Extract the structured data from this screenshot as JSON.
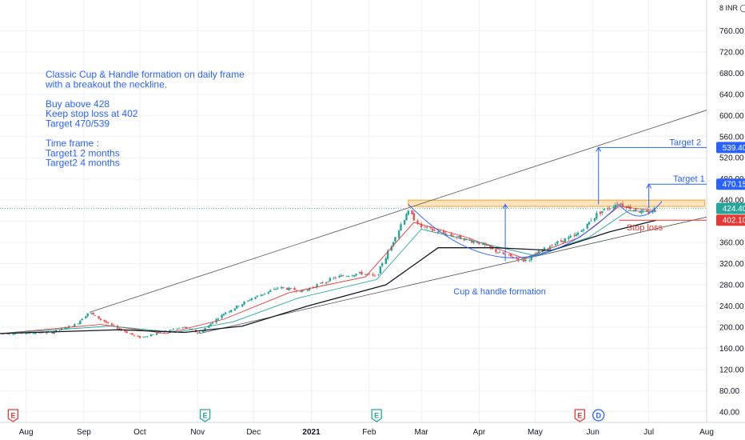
{
  "chart_data": {
    "type": "candlestick",
    "currency_label": "8 INR ◯",
    "y_ticks": [
      40,
      80,
      120,
      160,
      200,
      240,
      280,
      320,
      360,
      400,
      440,
      480,
      520,
      560,
      600,
      640,
      680,
      720,
      760
    ],
    "ylim": [
      20,
      800
    ],
    "x_ticks": [
      {
        "label": "Aug",
        "date": "2020-08-01"
      },
      {
        "label": "Sep",
        "date": "2020-09-01"
      },
      {
        "label": "Oct",
        "date": "2020-10-01"
      },
      {
        "label": "Nov",
        "date": "2020-11-01"
      },
      {
        "label": "Dec",
        "date": "2020-12-01"
      },
      {
        "label": "2021",
        "date": "2021-01-01",
        "bold": true
      },
      {
        "label": "Feb",
        "date": "2021-02-01"
      },
      {
        "label": "Mar",
        "date": "2021-03-01"
      },
      {
        "label": "Apr",
        "date": "2021-04-01"
      },
      {
        "label": "May",
        "date": "2021-05-01"
      },
      {
        "label": "Jun",
        "date": "2021-06-01"
      },
      {
        "label": "Jul",
        "date": "2021-07-01"
      },
      {
        "label": "Aug",
        "date": "2021-08-01"
      }
    ],
    "xlim": [
      "2020-07-18",
      "2021-08-01"
    ],
    "price_path": [
      [
        "2020-07-18",
        188
      ],
      [
        "2020-08-15",
        190
      ],
      [
        "2020-08-28",
        205
      ],
      [
        "2020-09-04",
        228
      ],
      [
        "2020-09-15",
        205
      ],
      [
        "2020-10-01",
        180
      ],
      [
        "2020-10-10",
        188
      ],
      [
        "2020-10-25",
        200
      ],
      [
        "2020-11-02",
        188
      ],
      [
        "2020-11-15",
        225
      ],
      [
        "2020-12-01",
        255
      ],
      [
        "2020-12-15",
        275
      ],
      [
        "2020-12-28",
        268
      ],
      [
        "2021-01-15",
        295
      ],
      [
        "2021-01-28",
        302
      ],
      [
        "2021-02-05",
        295
      ],
      [
        "2021-02-12",
        345
      ],
      [
        "2021-02-22",
        420
      ],
      [
        "2021-03-01",
        390
      ],
      [
        "2021-03-15",
        375
      ],
      [
        "2021-04-01",
        360
      ],
      [
        "2021-04-12",
        340
      ],
      [
        "2021-04-26",
        325
      ],
      [
        "2021-05-10",
        355
      ],
      [
        "2021-05-24",
        375
      ],
      [
        "2021-06-04",
        415
      ],
      [
        "2021-06-15",
        435
      ],
      [
        "2021-06-25",
        420
      ],
      [
        "2021-07-01",
        415
      ],
      [
        "2021-07-05",
        425
      ]
    ],
    "moving_averages": [
      {
        "color": "#e53935",
        "path": [
          [
            "2020-07-18",
            188
          ],
          [
            "2020-09-10",
            205
          ],
          [
            "2020-10-15",
            188
          ],
          [
            "2020-11-15",
            215
          ],
          [
            "2020-12-20",
            265
          ],
          [
            "2021-01-30",
            295
          ],
          [
            "2021-02-25",
            398
          ],
          [
            "2021-03-25",
            370
          ],
          [
            "2021-04-25",
            330
          ],
          [
            "2021-05-25",
            370
          ],
          [
            "2021-06-15",
            428
          ],
          [
            "2021-07-05",
            420
          ]
        ]
      },
      {
        "color": "#26a69a",
        "path": [
          [
            "2020-07-18",
            188
          ],
          [
            "2020-09-15",
            202
          ],
          [
            "2020-10-20",
            190
          ],
          [
            "2020-11-20",
            210
          ],
          [
            "2020-12-25",
            255
          ],
          [
            "2021-02-05",
            290
          ],
          [
            "2021-03-01",
            385
          ],
          [
            "2021-04-01",
            360
          ],
          [
            "2021-05-01",
            335
          ],
          [
            "2021-05-30",
            370
          ],
          [
            "2021-06-20",
            420
          ],
          [
            "2021-07-05",
            418
          ]
        ]
      },
      {
        "color": "#131722",
        "path": [
          [
            "2020-07-18",
            188
          ],
          [
            "2020-09-20",
            195
          ],
          [
            "2020-10-25",
            190
          ],
          [
            "2020-11-25",
            202
          ],
          [
            "2020-12-30",
            240
          ],
          [
            "2021-02-10",
            280
          ],
          [
            "2021-03-10",
            350
          ],
          [
            "2021-04-10",
            350
          ],
          [
            "2021-05-10",
            345
          ],
          [
            "2021-06-10",
            380
          ],
          [
            "2021-07-05",
            402
          ]
        ]
      }
    ],
    "channel_lines": [
      {
        "from": [
          "2020-09-04",
          228
        ],
        "to": [
          "2021-08-01",
          610
        ],
        "color": "#555555"
      },
      {
        "from": [
          "2020-11-02",
          188
        ],
        "to": [
          "2021-08-01",
          408
        ],
        "color": "#555555"
      }
    ],
    "resistance_zone": {
      "from": "2021-02-22",
      "to": "2021-07-31",
      "ymin": 428,
      "ymax": 440,
      "color": "#f5a623"
    },
    "price_labels": [
      {
        "value": "539.40",
        "price": 539.4,
        "bg": "#2962ff"
      },
      {
        "value": "470.15",
        "price": 470.15,
        "bg": "#2962ff"
      },
      {
        "value": "424.40",
        "price": 424.4,
        "bg": "#26a69a"
      },
      {
        "value": "402.10",
        "price": 402.1,
        "bg": "#e53935"
      }
    ],
    "annotations": {
      "notes": [
        "Classic Cup & Handle formation on daily frame",
        "with a breakout the neckline.",
        "",
        "Buy above 428",
        "Keep stop loss at 402",
        "Target 470/539",
        "",
        "Time frame :",
        "Target1   2 months",
        "Target2   4 months"
      ],
      "target2_label": "Target 2",
      "target1_label": "Target 1",
      "stoploss_label": "Stop loss",
      "cup_label": "Cup & handle formation"
    },
    "event_badges": [
      {
        "label": "E",
        "date": "2020-07-25",
        "color": "#e53935",
        "outline": true
      },
      {
        "label": "E",
        "date": "2020-11-05",
        "color": "#26a69a",
        "outline": true
      },
      {
        "label": "E",
        "date": "2021-02-05",
        "color": "#26a69a",
        "outline": true
      },
      {
        "label": "E",
        "date": "2021-05-25",
        "color": "#e53935",
        "outline": true
      },
      {
        "label": "D",
        "date": "2021-06-04",
        "color": "#2962ff",
        "outline": true,
        "circle": true
      }
    ]
  }
}
